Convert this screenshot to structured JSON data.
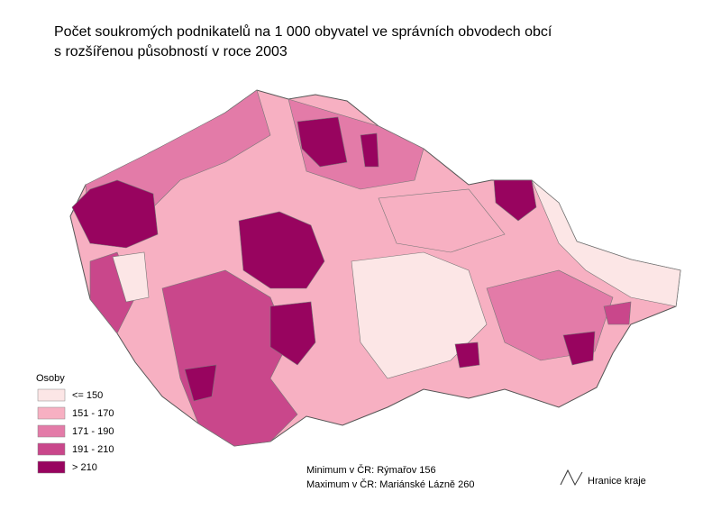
{
  "title": [
    "Počet soukromých podnikatelů na 1 000 obyvatel ve správních obvodech obcí",
    "s rozšířenou působností v roce 2003"
  ],
  "legend": {
    "title": "Osoby",
    "items": [
      {
        "label": "<= 150",
        "color": "#fce6e6"
      },
      {
        "label": "151 - 170",
        "color": "#f7b0c2"
      },
      {
        "label": "171 - 190",
        "color": "#e37ba8"
      },
      {
        "label": "191 - 210",
        "color": "#c9478b"
      },
      {
        "label": "> 210",
        "color": "#98045f"
      }
    ]
  },
  "notes": [
    "Minimum v ČR: Rýmařov 156",
    "Maximum v ČR: Mariánské Lázně 260"
  ],
  "boundary_legend": "Hranice kraje"
}
